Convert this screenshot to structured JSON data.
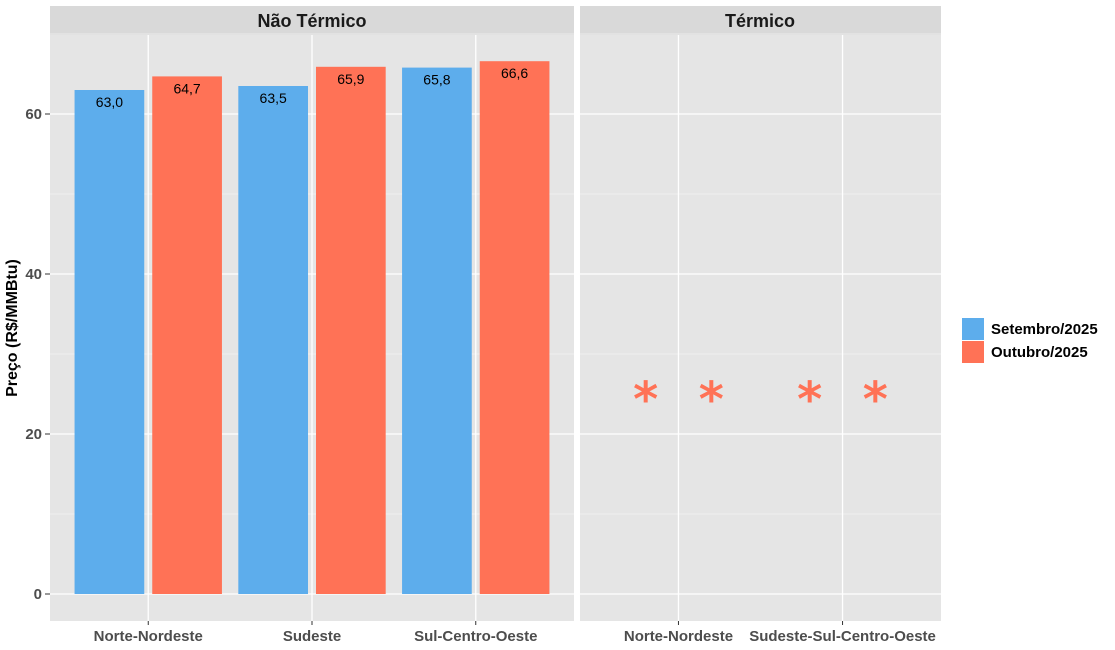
{
  "chart_data": {
    "type": "bar",
    "ylabel": "Preço (R$/MMBtu)",
    "ylim": [
      0,
      70
    ],
    "yticks": [
      0,
      20,
      40,
      60
    ],
    "grid": true,
    "legend_position": "right",
    "series": [
      {
        "name": "Setembro/2025",
        "color": "#5DADEC"
      },
      {
        "name": "Outubro/2025",
        "color": "#FF7256"
      }
    ],
    "panels": [
      {
        "title": "Não Térmico",
        "categories": [
          "Norte-Nordeste",
          "Sudeste",
          "Sul-Centro-Oeste"
        ],
        "values": [
          [
            63.0,
            64.7
          ],
          [
            63.5,
            65.9
          ],
          [
            65.8,
            66.6
          ]
        ],
        "labels": [
          [
            "63,0",
            "64,7"
          ],
          [
            "63,5",
            "65,9"
          ],
          [
            "65,8",
            "66,6"
          ]
        ]
      },
      {
        "title": "Térmico",
        "categories": [
          "Norte-Nordeste",
          "Sudeste-Sul-Centro-Oeste"
        ],
        "markers": [
          {
            "category": 0,
            "offset": -0.2,
            "y": 26,
            "symbol": "*"
          },
          {
            "category": 0,
            "offset": 0.2,
            "y": 26,
            "symbol": "*"
          },
          {
            "category": 1,
            "offset": -0.2,
            "y": 26,
            "symbol": "*"
          },
          {
            "category": 1,
            "offset": 0.2,
            "y": 26,
            "symbol": "*"
          }
        ],
        "marker_color": "#FF7256"
      }
    ]
  }
}
